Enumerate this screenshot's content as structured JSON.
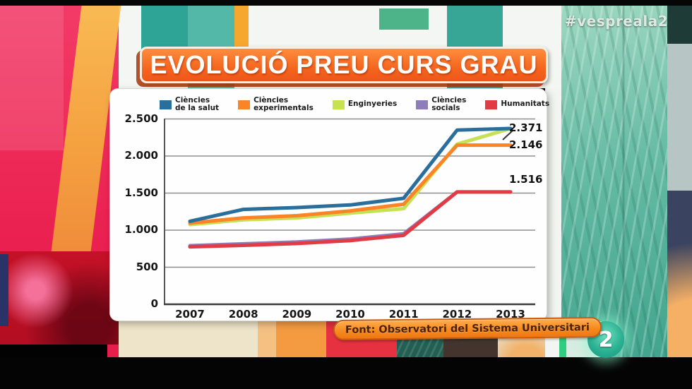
{
  "broadcast": {
    "hashtag": "#vespreala2",
    "channel_logo": "2"
  },
  "title_banner": {
    "text": "EVOLUCIÓ PREU CURS GRAU"
  },
  "source_banner": {
    "text": "Font: Observatori del Sistema Universitari"
  },
  "chart_data": {
    "type": "line",
    "title": "EVOLUCIÓ PREU CURS GRAU",
    "x": [
      "2007",
      "2008",
      "2009",
      "2010",
      "2011",
      "2012",
      "2013"
    ],
    "series": [
      {
        "name": "Ciències de la salut",
        "label_lines": [
          "Ciències",
          "de la salut"
        ],
        "color": "#2a6e9c",
        "values": [
          1120,
          1280,
          1305,
          1340,
          1430,
          2350,
          2371
        ]
      },
      {
        "name": "Ciències experimentals",
        "label_lines": [
          "Ciències",
          "experimentals"
        ],
        "color": "#fb8426",
        "values": [
          1095,
          1165,
          1195,
          1260,
          1350,
          2146,
          2146
        ]
      },
      {
        "name": "Enginyeries",
        "label_lines": [
          "Enginyeries"
        ],
        "color": "#c6e254",
        "values": [
          1075,
          1140,
          1165,
          1230,
          1290,
          2160,
          2371
        ]
      },
      {
        "name": "Ciències socials",
        "label_lines": [
          "Ciències",
          "socials"
        ],
        "color": "#8f7cba",
        "values": [
          790,
          815,
          840,
          880,
          950,
          1516,
          1516
        ]
      },
      {
        "name": "Humanitats",
        "label_lines": [
          "Humanitats"
        ],
        "color": "#e23b44",
        "values": [
          775,
          795,
          820,
          860,
          930,
          1516,
          1516
        ]
      }
    ],
    "end_labels": [
      {
        "text": "2.371",
        "value": 2371,
        "dy": 0
      },
      {
        "text": "2.146",
        "value": 2146,
        "dy": 0
      },
      {
        "text": "1.516",
        "value": 1516,
        "dy": -17
      }
    ],
    "ylim": [
      0,
      2500
    ],
    "yticks": [
      0,
      500,
      1000,
      1500,
      2000,
      2500
    ],
    "ytick_labels": [
      "0",
      "500",
      "1.000",
      "1.500",
      "2.000",
      "2.500"
    ],
    "grid": true,
    "legend_position": "top"
  }
}
